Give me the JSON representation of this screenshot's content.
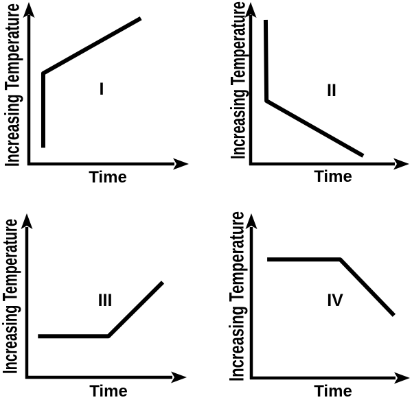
{
  "page": {
    "background": "#ffffff",
    "line_color": "#000000",
    "description": "Four qualitative temperature-vs-time graphs labeled I, II, III and IV, arranged in a 2x2 grid"
  },
  "chart_data": [
    {
      "type": "line",
      "label": "I",
      "xlabel": "Time",
      "ylabel": "Increasing Temperature",
      "axes": "qualitative, unlabeled arrows; no ticks or gridlines",
      "description": "Temperature rises almost vertically at first, then continues rising at a slower steady rate",
      "series": [
        {
          "name": "curve-I",
          "points": [
            [
              0.09,
              0.1
            ],
            [
              0.09,
              0.56
            ],
            [
              0.7,
              0.9
            ]
          ]
        }
      ]
    },
    {
      "type": "line",
      "label": "II",
      "xlabel": "Time",
      "ylabel": "Increasing Temperature",
      "axes": "qualitative, unlabeled arrows; no ticks or gridlines",
      "description": "Temperature drops almost vertically at first, then continues falling at a slower steady rate",
      "series": [
        {
          "name": "curve-II",
          "points": [
            [
              0.095,
              0.89
            ],
            [
              0.1,
              0.39
            ],
            [
              0.71,
              0.05
            ]
          ]
        }
      ]
    },
    {
      "type": "line",
      "label": "III",
      "xlabel": "Time",
      "ylabel": "Increasing Temperature",
      "axes": "qualitative, unlabeled arrows; no ticks or gridlines",
      "description": "Temperature stays constant (plateau) at a low level, then rises at a steady rate",
      "series": [
        {
          "name": "curve-III",
          "points": [
            [
              0.07,
              0.25
            ],
            [
              0.51,
              0.25
            ],
            [
              0.85,
              0.58
            ]
          ]
        }
      ]
    },
    {
      "type": "line",
      "label": "IV",
      "xlabel": "Time",
      "ylabel": "Increasing Temperature",
      "axes": "qualitative, unlabeled arrows; no ticks or gridlines",
      "description": "Temperature stays constant (plateau) at a high level, then falls at a steady rate",
      "series": [
        {
          "name": "curve-IV",
          "points": [
            [
              0.1,
              0.72
            ],
            [
              0.56,
              0.72
            ],
            [
              0.9,
              0.38
            ]
          ]
        }
      ]
    }
  ]
}
